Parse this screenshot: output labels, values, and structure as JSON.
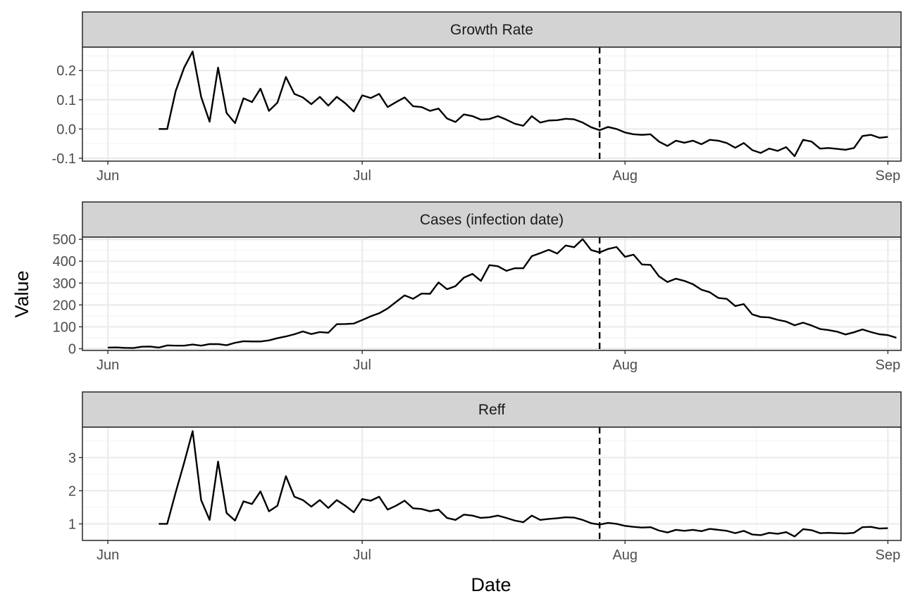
{
  "chart_data": {
    "type": "line",
    "layout": "faceted-3-rows",
    "xlabel": "Date",
    "ylabel": "Value",
    "x_range": [
      "2020-05-29",
      "2020-09-01"
    ],
    "x_ticks": [
      {
        "date": "2020-06-01",
        "label": "Jun"
      },
      {
        "date": "2020-07-01",
        "label": "Jul"
      },
      {
        "date": "2020-08-01",
        "label": "Aug"
      },
      {
        "date": "2020-09-01",
        "label": "Sep"
      }
    ],
    "vline_date": "2020-07-29",
    "vline_style": "dashed",
    "grid": true,
    "line_color": "#000000",
    "facets": [
      {
        "title": "Growth Rate",
        "ylim": [
          -0.11,
          0.28
        ],
        "yticks": [
          -0.1,
          0.0,
          0.1,
          0.2
        ],
        "ytick_labels": [
          "-0.1",
          "0.0",
          "0.1",
          "0.2"
        ],
        "start_date": "2020-06-07",
        "values": [
          0.0,
          0.0,
          0.13,
          0.21,
          0.265,
          0.11,
          0.025,
          0.21,
          0.055,
          0.02,
          0.105,
          0.092,
          0.138,
          0.062,
          0.09,
          0.178,
          0.12,
          0.108,
          0.085,
          0.11,
          0.08,
          0.11,
          0.088,
          0.06,
          0.115,
          0.106,
          0.12,
          0.075,
          0.092,
          0.108,
          0.078,
          0.075,
          0.062,
          0.07,
          0.036,
          0.024,
          0.05,
          0.044,
          0.032,
          0.034,
          0.044,
          0.032,
          0.018,
          0.011,
          0.044,
          0.022,
          0.029,
          0.03,
          0.035,
          0.033,
          0.022,
          0.006,
          -0.004,
          0.007,
          0.0,
          -0.012,
          -0.018,
          -0.02,
          -0.018,
          -0.043,
          -0.058,
          -0.04,
          -0.047,
          -0.04,
          -0.052,
          -0.037,
          -0.04,
          -0.048,
          -0.064,
          -0.048,
          -0.072,
          -0.082,
          -0.067,
          -0.075,
          -0.062,
          -0.093,
          -0.037,
          -0.043,
          -0.067,
          -0.065,
          -0.068,
          -0.071,
          -0.065,
          -0.024,
          -0.02,
          -0.03,
          -0.027
        ]
      },
      {
        "title": "Cases (infection date)",
        "ylim": [
          -8,
          510
        ],
        "yticks": [
          0,
          100,
          200,
          300,
          400,
          500
        ],
        "ytick_labels": [
          "0",
          "100",
          "200",
          "300",
          "400",
          "500"
        ],
        "start_date": "2020-06-01",
        "values": [
          5,
          6,
          4,
          3,
          9,
          10,
          5,
          15,
          14,
          14,
          19,
          14,
          21,
          21,
          16,
          27,
          34,
          33,
          33,
          38,
          48,
          56,
          66,
          79,
          67,
          76,
          73,
          112,
          113,
          115,
          131,
          148,
          162,
          184,
          214,
          244,
          228,
          252,
          251,
          303,
          272,
          286,
          325,
          342,
          310,
          382,
          377,
          356,
          368,
          368,
          423,
          437,
          452,
          435,
          472,
          464,
          501,
          451,
          440,
          456,
          465,
          420,
          430,
          385,
          383,
          331,
          305,
          320,
          310,
          295,
          270,
          258,
          232,
          228,
          195,
          204,
          157,
          145,
          143,
          132,
          124,
          107,
          119,
          106,
          90,
          85,
          78,
          65,
          75,
          88,
          76,
          66,
          62,
          50
        ]
      },
      {
        "title": "Reff",
        "ylim": [
          0.5,
          3.92
        ],
        "yticks": [
          1,
          2,
          3
        ],
        "ytick_labels": [
          "1",
          "2",
          "3"
        ],
        "start_date": "2020-06-07",
        "values": [
          1.0,
          1.0,
          1.95,
          2.85,
          3.8,
          1.72,
          1.12,
          2.88,
          1.33,
          1.1,
          1.68,
          1.6,
          1.98,
          1.38,
          1.55,
          2.44,
          1.82,
          1.72,
          1.52,
          1.72,
          1.48,
          1.72,
          1.55,
          1.35,
          1.75,
          1.7,
          1.82,
          1.43,
          1.55,
          1.7,
          1.47,
          1.45,
          1.38,
          1.43,
          1.18,
          1.12,
          1.28,
          1.25,
          1.18,
          1.2,
          1.25,
          1.18,
          1.1,
          1.05,
          1.25,
          1.12,
          1.15,
          1.17,
          1.2,
          1.19,
          1.12,
          1.02,
          0.98,
          1.03,
          1.0,
          0.94,
          0.91,
          0.89,
          0.9,
          0.8,
          0.74,
          0.82,
          0.79,
          0.82,
          0.78,
          0.85,
          0.82,
          0.79,
          0.72,
          0.79,
          0.68,
          0.66,
          0.73,
          0.7,
          0.75,
          0.62,
          0.84,
          0.81,
          0.72,
          0.73,
          0.72,
          0.71,
          0.73,
          0.9,
          0.91,
          0.86,
          0.87
        ]
      }
    ]
  }
}
